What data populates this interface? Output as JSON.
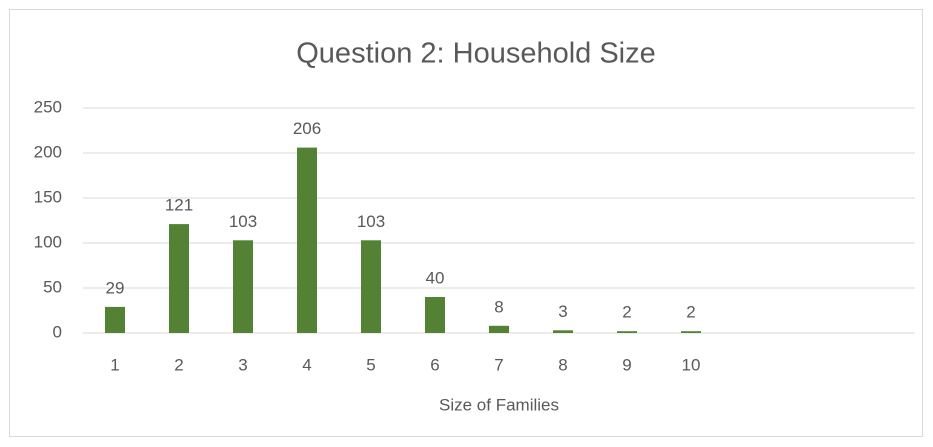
{
  "chart_data": {
    "type": "bar",
    "title": "Question 2:  Household Size",
    "x_label": "Size of Families",
    "categories": [
      "1",
      "2",
      "3",
      "4",
      "5",
      "6",
      "7",
      "8",
      "9",
      "10",
      null,
      null,
      null
    ],
    "values": [
      29,
      121,
      103,
      206,
      103,
      40,
      8,
      3,
      2,
      2,
      null,
      null,
      null
    ],
    "color": "#548235",
    "ylim": [
      0,
      250
    ],
    "yticks": [
      0,
      50,
      100,
      150,
      200,
      250
    ],
    "grid": true
  }
}
